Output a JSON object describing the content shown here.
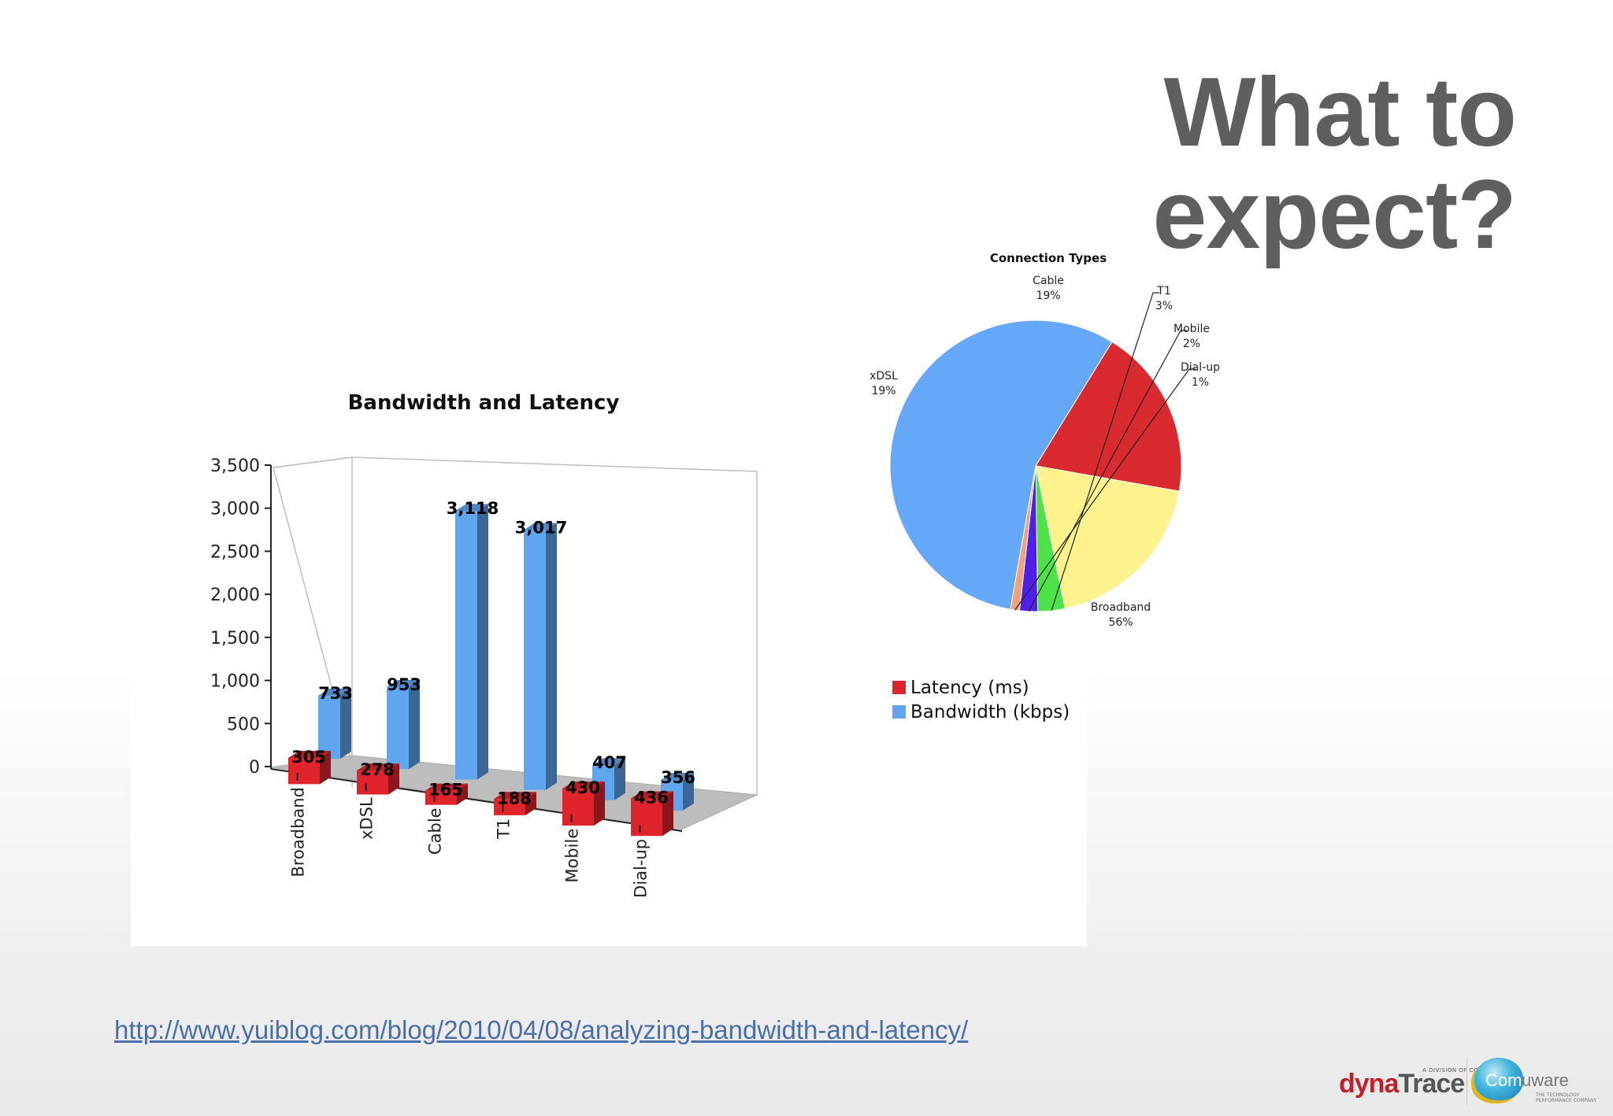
{
  "slide": {
    "title": "What to expect?",
    "source_url": "http://www.yuiblog.com/blog/2010/04/08/analyzing-bandwidth-and-latency/"
  },
  "branding": {
    "dynatrace_tagline": "A DIVISION OF COMPUWARE",
    "dynatrace_prefix": "dyna",
    "dynatrace_suffix": "Trace",
    "compuware_left": "Comp",
    "compuware_right": "uware",
    "compuware_tagline": "THE TECHNOLOGY PERFORMANCE COMPANY"
  },
  "chart_data": [
    {
      "type": "bar",
      "title": "Bandwidth and Latency",
      "categories": [
        "Broadband",
        "xDSL",
        "Cable",
        "T1",
        "Mobile",
        "Dial-up"
      ],
      "series": [
        {
          "name": "Latency (ms)",
          "color": "#e0242b",
          "values": [
            305,
            278,
            165,
            188,
            430,
            436
          ]
        },
        {
          "name": "Bandwidth (kbps)",
          "color": "#5fa6ee",
          "values": [
            733,
            953,
            3118,
            3017,
            407,
            356
          ]
        }
      ],
      "ylim": [
        0,
        3500
      ],
      "yticks": [
        "0",
        "500",
        "1,000",
        "1,500",
        "2,000",
        "2,500",
        "3,000",
        "3,500"
      ],
      "data_labels": {
        "latency": [
          "305",
          "278",
          "165",
          "188",
          "430",
          "436"
        ],
        "bandwidth": [
          "733",
          "953",
          "3,118",
          "3,017",
          "407",
          "356"
        ]
      },
      "legend": [
        "Latency (ms)",
        "Bandwidth (kbps)"
      ],
      "legend_position": "right",
      "style": "3d"
    },
    {
      "type": "pie",
      "title": "Connection Types",
      "slices": [
        {
          "label": "Broadband",
          "value": 56,
          "display": "56%",
          "color": "#64a8f7"
        },
        {
          "label": "xDSL",
          "value": 19,
          "display": "19%",
          "color": "#d92a2f"
        },
        {
          "label": "Cable",
          "value": 19,
          "display": "19%",
          "color": "#fdf28d"
        },
        {
          "label": "T1",
          "value": 3,
          "display": "3%",
          "color": "#4fe14a"
        },
        {
          "label": "Mobile",
          "value": 2,
          "display": "2%",
          "color": "#5120e8"
        },
        {
          "label": "Dial-up",
          "value": 1,
          "display": "1%",
          "color": "#f0a07a"
        }
      ]
    }
  ]
}
